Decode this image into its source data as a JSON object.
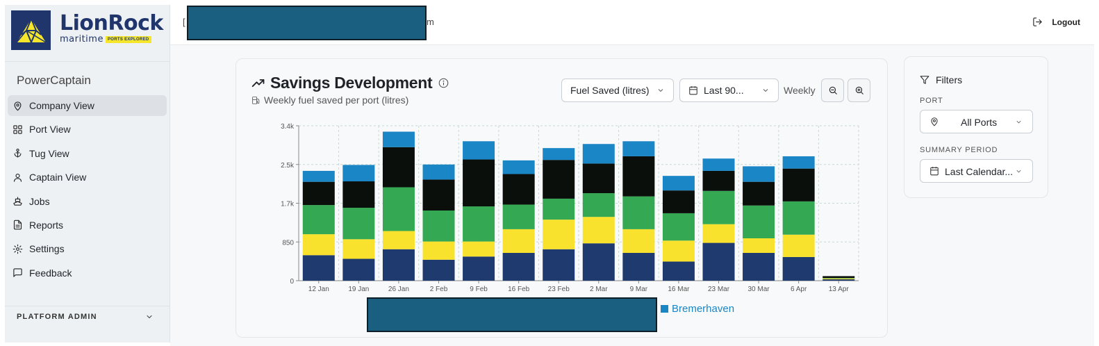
{
  "brand": {
    "name": "LionRock",
    "sub": "maritime",
    "tag": "PORTS EXPLORED",
    "colors": {
      "navy": "#1f356b",
      "yellow": "#f5e52b"
    }
  },
  "sidebar": {
    "app_name": "PowerCaptain",
    "items": [
      {
        "label": "Company View",
        "icon": "map-pin-icon",
        "active": true
      },
      {
        "label": "Port View",
        "icon": "grid-icon"
      },
      {
        "label": "Tug View",
        "icon": "anchor-icon"
      },
      {
        "label": "Captain View",
        "icon": "user-icon"
      },
      {
        "label": "Jobs",
        "icon": "ship-icon"
      },
      {
        "label": "Reports",
        "icon": "file-text-icon"
      },
      {
        "label": "Settings",
        "icon": "gear-icon"
      },
      {
        "label": "Feedback",
        "icon": "message-icon"
      }
    ],
    "platform_admin": "PLATFORM ADMIN"
  },
  "topbar": {
    "redacted_tail": "m",
    "logout_label": "Logout"
  },
  "card": {
    "title": "Savings Development",
    "subtitle": "Weekly fuel saved per port (litres)",
    "metric_select": "Fuel Saved (litres)",
    "range_select": "Last 90...",
    "granularity": "Weekly"
  },
  "legend": {
    "visible_entry": "Bremerhaven"
  },
  "filters": {
    "title": "Filters",
    "port_label": "PORT",
    "port_value": "All Ports",
    "period_label": "SUMMARY PERIOD",
    "period_value": "Last Calendar..."
  },
  "chart_data": {
    "type": "bar",
    "stacked": true,
    "categories": [
      "12 Jan",
      "19 Jan",
      "26 Jan",
      "2 Feb",
      "9 Feb",
      "16 Feb",
      "23 Feb",
      "2 Mar",
      "9 Mar",
      "16 Mar",
      "23 Mar",
      "30 Mar",
      "6 Apr",
      "13 Apr"
    ],
    "yticks": [
      "0",
      "850",
      "1.7k",
      "2.5k",
      "3.4k"
    ],
    "ylim": [
      0,
      3400
    ],
    "grid": true,
    "series": [
      {
        "color": "#1f3a6e",
        "values": [
          560,
          480,
          690,
          460,
          530,
          610,
          690,
          820,
          610,
          420,
          830,
          610,
          520,
          30
        ]
      },
      {
        "color": "#f9e22d",
        "values": [
          460,
          430,
          400,
          400,
          330,
          520,
          650,
          580,
          520,
          460,
          410,
          320,
          490,
          20
        ]
      },
      {
        "color": "#34a853",
        "values": [
          640,
          690,
          960,
          680,
          770,
          540,
          460,
          520,
          720,
          600,
          730,
          720,
          730,
          10
        ]
      },
      {
        "color": "#0b0f0c",
        "values": [
          510,
          580,
          880,
          680,
          1030,
          670,
          850,
          650,
          880,
          500,
          440,
          520,
          720,
          40
        ]
      },
      {
        "color": "#1b86c6",
        "values": [
          240,
          360,
          340,
          330,
          400,
          300,
          260,
          430,
          330,
          320,
          270,
          340,
          270,
          0
        ]
      }
    ],
    "legend": [
      "Bremerhaven"
    ]
  }
}
